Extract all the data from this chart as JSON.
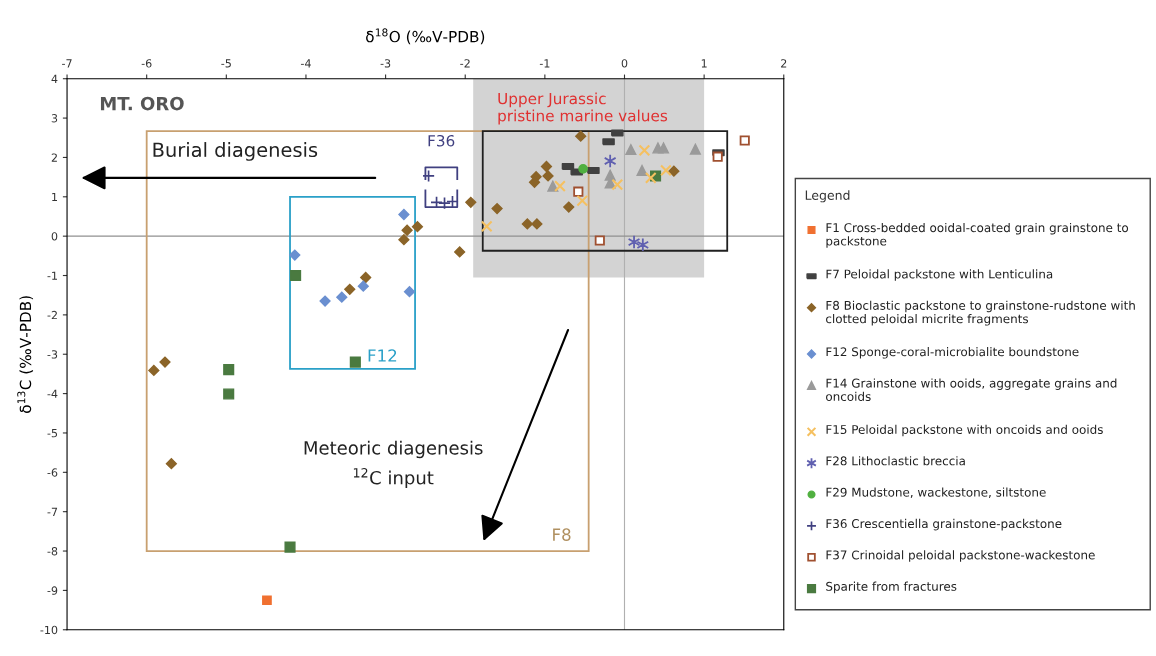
{
  "chart_data": {
    "type": "scatter",
    "xlabel": "δ$^{18}$O (‰V-PDB)",
    "ylabel": "δ$^{13}$C (‰V-PDB)",
    "xlim": [
      -7,
      2
    ],
    "xticks": [
      -7,
      -6,
      -5,
      -4,
      -3,
      -2,
      -1,
      0,
      1,
      2
    ],
    "ylim": [
      -10,
      4
    ],
    "yticks": [
      -10,
      -9,
      -8,
      -7,
      -6,
      -5,
      -4,
      -3,
      -2,
      -1,
      0,
      1,
      2,
      3,
      4
    ],
    "grid": false,
    "legend": "right",
    "legend_title": "Legend",
    "ref_lines": [
      {
        "axis": "x",
        "value": 0,
        "color": "#b0b0b0"
      },
      {
        "axis": "y",
        "value": 0,
        "color": "#909090"
      }
    ],
    "annotations": [
      "MT. ORO",
      "Burial diagenesis",
      "Meteoric diagenesis\n$^{12}$C input",
      "Upper Jurassic\npristine marine values",
      "F36",
      "F12",
      "F8"
    ],
    "series": [
      {
        "name": "F1 Cross-bedded ooidal-coated grain grainstone to packstone",
        "color": "#f07030",
        "marker": "square",
        "x": [
          -4.49
        ],
        "values": [
          -9.25
        ]
      },
      {
        "name": "F7 Peloidal packstone with Lenticulina",
        "color": "#404040",
        "x": [
          -0.09,
          -0.2,
          -0.71,
          -0.6,
          -0.39,
          1.18
        ],
        "values": [
          2.62,
          2.4,
          1.77,
          1.63,
          1.67,
          2.12
        ]
      },
      {
        "name": "F8 Bioclastic packstone to grainstone-rudstone with clotted peloidal micrite fragments",
        "color": "#8b6428",
        "marker": "diamond",
        "x": [
          -2.77,
          -2.73,
          -2.6,
          -1.93,
          -2.07,
          -3.45,
          -3.25,
          -5.91,
          -5.77,
          -5.69,
          -0.55,
          -0.98,
          -1.11,
          -1.13,
          -0.96,
          -1.6,
          -1.22,
          -1.1,
          -0.7,
          0.62
        ],
        "values": [
          -0.09,
          0.15,
          0.24,
          0.86,
          -0.4,
          -1.35,
          -1.05,
          -3.41,
          -3.2,
          -5.78,
          2.54,
          1.77,
          1.51,
          1.37,
          1.53,
          0.7,
          0.31,
          0.31,
          0.74,
          1.65
        ]
      },
      {
        "name": "F12 Sponge-coral-microbialite boundstone",
        "color": "#6a8fd0",
        "marker": "diamond",
        "x": [
          -2.77,
          -4.14,
          -3.76,
          -3.55,
          -3.28,
          -2.7
        ],
        "values": [
          0.55,
          -0.48,
          -1.65,
          -1.55,
          -1.27,
          -1.41
        ]
      },
      {
        "name": "F14 Grainstone with ooids, aggregate grains and oncoids",
        "color": "#9a9a9a",
        "marker": "triangle",
        "x": [
          0.08,
          0.42,
          0.49,
          0.89,
          0.22,
          -0.18,
          -0.18,
          -0.9
        ],
        "values": [
          2.2,
          2.24,
          2.24,
          2.21,
          1.67,
          1.55,
          1.35,
          1.27
        ]
      },
      {
        "name": "F15 Peloidal packstone with oncoids and ooids",
        "color": "#f5c060",
        "marker": "x",
        "x": [
          0.25,
          0.52,
          0.33,
          -0.81,
          -0.09,
          -0.53,
          -1.73
        ],
        "values": [
          2.18,
          1.67,
          1.48,
          1.27,
          1.31,
          0.9,
          0.25
        ]
      },
      {
        "name": "F28 Lithoclastic breccia",
        "color": "#6060b0",
        "marker": "cross",
        "x": [
          -0.18,
          0.12,
          0.23
        ],
        "values": [
          1.91,
          -0.15,
          -0.22
        ]
      },
      {
        "name": "F29 Mudstone, wackestone, siltstone",
        "color": "#50b040",
        "marker": "circle",
        "x": [
          -0.52
        ],
        "values": [
          1.71
        ]
      },
      {
        "name": "F36 Crescentiella grainstone-packstone",
        "color": "#404080",
        "marker": "cross",
        "x": [
          -2.46,
          -2.36,
          -2.26,
          -2.16
        ],
        "values": [
          1.53,
          0.86,
          0.84,
          0.88
        ]
      },
      {
        "name": "F37 Crinoidal peloidal packstone-wackestone",
        "color": "#a05030",
        "marker": "square",
        "x": [
          1.51,
          1.17,
          -0.58,
          -0.31
        ],
        "values": [
          2.43,
          2.02,
          1.13,
          -0.11
        ]
      },
      {
        "name": "Sparite from fractures",
        "color": "#4a7a40",
        "marker": "square",
        "x": [
          -4.13,
          -4.97,
          -4.97,
          -3.38,
          -4.2,
          0.39
        ],
        "values": [
          -1.0,
          -3.39,
          -4.01,
          -3.2,
          -7.9,
          1.53
        ]
      }
    ]
  }
}
